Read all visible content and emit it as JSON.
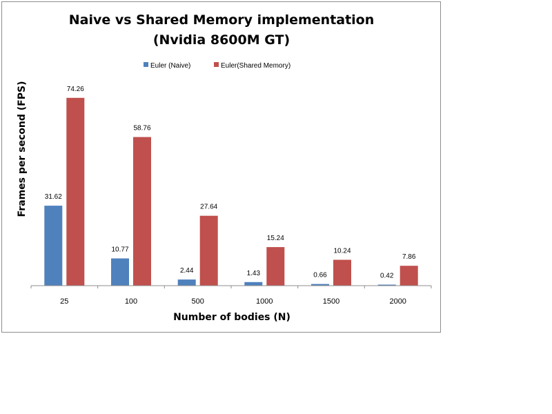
{
  "chart_data": {
    "type": "bar",
    "title": "Naive vs Shared Memory implementation",
    "subtitle": "(Nvidia 8600M GT)",
    "xlabel": "Number of bodies (N)",
    "ylabel": "Frames per second (FPS)",
    "categories": [
      "25",
      "100",
      "500",
      "1000",
      "1500",
      "2000"
    ],
    "series": [
      {
        "name": "Euler (Naive)",
        "color": "#4f81bd",
        "values": [
          31.62,
          10.77,
          2.44,
          1.43,
          0.66,
          0.42
        ],
        "labels": [
          "31.62",
          "10.77",
          "2.44",
          "1.43",
          "0.66",
          "0.42"
        ]
      },
      {
        "name": "Euler(Shared Memory)",
        "color": "#c0504d",
        "values": [
          74.26,
          58.76,
          27.64,
          15.24,
          10.24,
          7.86
        ],
        "labels": [
          "74.26",
          "58.76",
          "27.64",
          "15.24",
          "10.24",
          "7.86"
        ]
      }
    ],
    "ylim": [
      0,
      80
    ],
    "grid": false,
    "legend_position": "top"
  }
}
